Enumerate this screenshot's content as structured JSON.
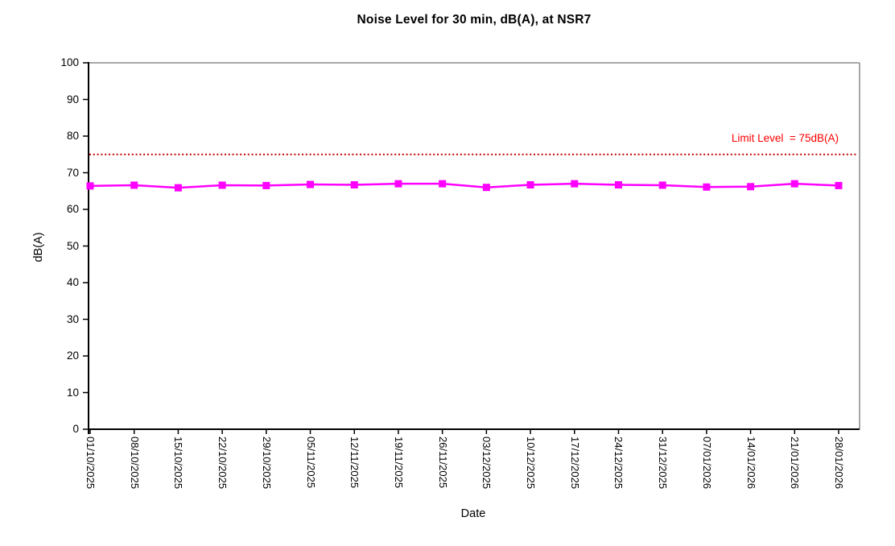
{
  "title": "Noise Level for 30 min, dB(A), at NSR7",
  "chart_data": {
    "type": "line",
    "title": "Noise Level for 30 min, dB(A), at NSR7",
    "xlabel": "Date",
    "ylabel": "dB(A)",
    "ylim": [
      0,
      100
    ],
    "y_tick_step": 10,
    "y_tick_labels": [
      "0",
      "10",
      "20",
      "30",
      "40",
      "50",
      "60",
      "70",
      "80",
      "90",
      "100"
    ],
    "x_tick_rotation": 90,
    "grid": false,
    "legend": false,
    "categories": [
      "01/10/2025",
      "08/10/2025",
      "15/10/2025",
      "22/10/2025",
      "29/10/2025",
      "05/11/2025",
      "12/11/2025",
      "19/11/2025",
      "26/11/2025",
      "03/12/2025",
      "10/12/2025",
      "17/12/2025",
      "24/12/2025",
      "31/12/2025",
      "07/01/2026",
      "14/01/2026",
      "21/01/2026",
      "28/01/2026"
    ],
    "series": [
      {
        "name": "Noise Level dB(A)",
        "marker": "square",
        "color": "#FF00FF",
        "values": [
          66.4,
          66.6,
          65.9,
          66.6,
          66.5,
          66.8,
          66.7,
          67.0,
          67.0,
          66.0,
          66.7,
          67.0,
          66.7,
          66.6,
          66.1,
          66.2,
          67.0,
          66.5
        ]
      }
    ],
    "limit_line": {
      "value": 75,
      "label": "Limit Level  = 75dB(A)",
      "line_color": "#C00000",
      "label_color": "#FF0000",
      "style": "dotted"
    },
    "colors": {
      "axis": "#000000",
      "plot_border": "#8C8C8C",
      "background": "#FFFFFF"
    }
  }
}
